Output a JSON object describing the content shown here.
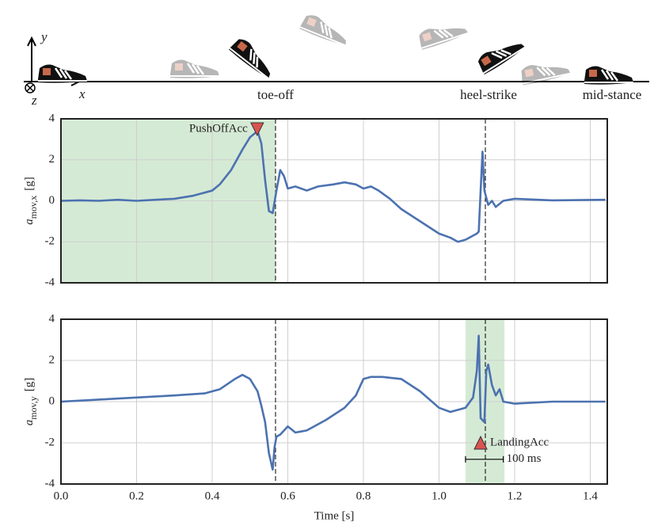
{
  "schematic": {
    "axis_labels": {
      "y": "y",
      "x": "x",
      "z": "z"
    },
    "phases": [
      "toe-off",
      "heel-strike",
      "mid-stance"
    ]
  },
  "chart_data": [
    {
      "type": "line",
      "color": "#4c72b0",
      "grid": true,
      "show_xticklabels": false,
      "ylabel": {
        "symbol": "a",
        "subscript": "mov,x",
        "unit": "[g]"
      },
      "xlim": [
        0,
        1.445
      ],
      "ylim": [
        -4,
        4
      ],
      "xticks": [
        {
          "value": 0,
          "label": "0.0"
        },
        0.2,
        0.4,
        0.6,
        0.8,
        {
          "value": 1,
          "label": "1.0"
        },
        1.2,
        1.4
      ],
      "yticks": [
        -4,
        -2,
        0,
        2,
        4
      ],
      "spans": [
        {
          "start": 0,
          "end": 0.5675,
          "color": "#d5ead5"
        }
      ],
      "vlines": [
        0.5675,
        1.1225
      ],
      "annotations": [
        {
          "label": "PushOffAcc",
          "x": 0.519,
          "y": 3.5,
          "marker": "down",
          "color": "#d9534f"
        }
      ],
      "x": [
        0,
        0.05,
        0.1,
        0.15,
        0.2,
        0.25,
        0.3,
        0.35,
        0.4,
        0.42,
        0.45,
        0.48,
        0.5,
        0.52,
        0.53,
        0.54,
        0.55,
        0.56,
        0.57,
        0.58,
        0.59,
        0.6,
        0.62,
        0.65,
        0.68,
        0.72,
        0.75,
        0.78,
        0.8,
        0.82,
        0.84,
        0.87,
        0.9,
        0.95,
        1.0,
        1.03,
        1.05,
        1.07,
        1.1,
        1.105,
        1.11,
        1.115,
        1.12,
        1.13,
        1.14,
        1.15,
        1.17,
        1.2,
        1.3,
        1.44
      ],
      "values": [
        0,
        0.02,
        0,
        0.05,
        0,
        0.05,
        0.1,
        0.25,
        0.5,
        0.8,
        1.5,
        2.5,
        3.1,
        3.4,
        2.8,
        1.0,
        -0.5,
        -0.6,
        0.5,
        1.5,
        1.2,
        0.6,
        0.7,
        0.5,
        0.7,
        0.8,
        0.9,
        0.8,
        0.6,
        0.7,
        0.5,
        0.1,
        -0.4,
        -1.0,
        -1.6,
        -1.8,
        -2.0,
        -1.9,
        -1.6,
        -1.5,
        0.5,
        2.4,
        0.5,
        -0.2,
        0,
        -0.3,
        0,
        0.1,
        0.02,
        0.05
      ]
    },
    {
      "type": "line",
      "color": "#4c72b0",
      "grid": true,
      "show_xticklabels": true,
      "xlabel": "Time [s]",
      "ylabel": {
        "symbol": "a",
        "subscript": "mov,y",
        "unit": "[g]"
      },
      "xlim": [
        0,
        1.445
      ],
      "ylim": [
        -4,
        4
      ],
      "xticks": [
        {
          "value": 0,
          "label": "0.0"
        },
        0.2,
        0.4,
        0.6,
        0.8,
        {
          "value": 1,
          "label": "1.0"
        },
        1.2,
        1.4
      ],
      "yticks": [
        -4,
        -2,
        0,
        2,
        4
      ],
      "spans": [
        {
          "start": 1.07,
          "end": 1.173,
          "color": "#d5ead5"
        }
      ],
      "vlines": [
        0.5675,
        1.1225
      ],
      "annotations": [
        {
          "label": "LandingAcc",
          "x": 1.11,
          "y": -2,
          "marker": "up",
          "color": "#d9534f"
        }
      ],
      "scalebar": {
        "start": 1.07,
        "end": 1.17,
        "y": -2.8,
        "label": "100 ms"
      },
      "x": [
        0,
        0.1,
        0.2,
        0.3,
        0.38,
        0.42,
        0.46,
        0.48,
        0.5,
        0.52,
        0.53,
        0.54,
        0.55,
        0.56,
        0.565,
        0.57,
        0.58,
        0.6,
        0.62,
        0.65,
        0.7,
        0.75,
        0.78,
        0.8,
        0.82,
        0.85,
        0.9,
        0.95,
        1.0,
        1.03,
        1.07,
        1.09,
        1.1,
        1.105,
        1.11,
        1.12,
        1.125,
        1.13,
        1.14,
        1.15,
        1.16,
        1.17,
        1.2,
        1.3,
        1.44
      ],
      "values": [
        0,
        0.1,
        0.2,
        0.3,
        0.4,
        0.6,
        1.1,
        1.3,
        1.1,
        0.5,
        -0.2,
        -1.0,
        -2.5,
        -3.3,
        -2.2,
        -1.7,
        -1.6,
        -1.2,
        -1.5,
        -1.4,
        -0.9,
        -0.3,
        0.3,
        1.1,
        1.2,
        1.2,
        1.1,
        0.5,
        -0.3,
        -0.5,
        -0.3,
        0.2,
        1.5,
        3.2,
        -0.8,
        -1.0,
        1.5,
        1.8,
        0.8,
        0.3,
        0.6,
        0,
        -0.1,
        0,
        0
      ]
    }
  ]
}
